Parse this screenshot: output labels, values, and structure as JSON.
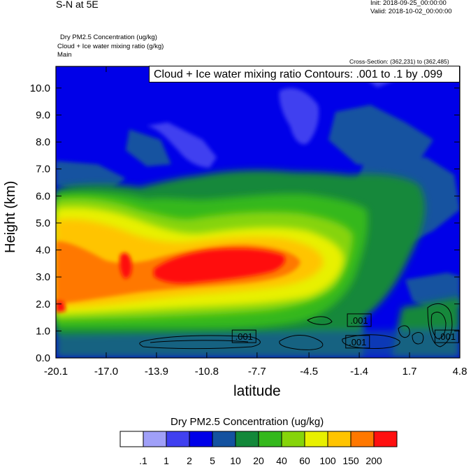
{
  "header": {
    "title": "S-N at 5E",
    "init": "Init: 2018-09-25_00:00:00",
    "valid": "Valid: 2018-10-02_00:00:00",
    "field1": "Dry PM2.5 Concentration   (ug/kg)",
    "field2": "Cloud + Ice water mixing ratio   (g/kg)",
    "field3": "Main",
    "cross_section": "Cross-Section: (362,231) to (362,485)",
    "contour_info": "Cloud + Ice water mixing ratio Contours: .001 to .1 by .099"
  },
  "chart_data": {
    "type": "heatmap",
    "xlabel": "latitude",
    "ylabel": "Height (km)",
    "xlim": [
      -20.1,
      4.8
    ],
    "ylim": [
      0.0,
      10.8
    ],
    "x_ticks": [
      "-20.1",
      "-17.0",
      "-13.9",
      "-10.8",
      "-7.7",
      "-4.5",
      "-1.4",
      "1.7",
      "4.8"
    ],
    "x_tick_values": [
      -20.1,
      -17.0,
      -13.9,
      -10.8,
      -7.7,
      -4.5,
      -1.4,
      1.7,
      4.8
    ],
    "y_ticks": [
      "0.0",
      "1.0",
      "2.0",
      "3.0",
      "4.0",
      "5.0",
      "6.0",
      "7.0",
      "8.0",
      "9.0",
      "10.0"
    ],
    "y_tick_values": [
      0,
      1,
      2,
      3,
      4,
      5,
      6,
      7,
      8,
      9,
      10
    ],
    "colorbar": {
      "title": "Dry PM2.5 Concentration  (ug/kg)",
      "levels": [
        ".1",
        "1",
        "2",
        "5",
        "10",
        "20",
        "40",
        "60",
        "100",
        "150",
        "200"
      ],
      "colors": [
        "#ffffff",
        "#a0a0f8",
        "#4040f0",
        "#0000e8",
        "#1452a0",
        "#13883a",
        "#34b81c",
        "#86d40a",
        "#e8f000",
        "#ffc400",
        "#ff7800",
        "#ff1010"
      ]
    },
    "contour_labels": [
      {
        "text": ".001",
        "lat": -8.5,
        "height": 0.8
      },
      {
        "text": ".001",
        "lat": -1.4,
        "height": 1.4
      },
      {
        "text": ".001",
        "lat": -1.5,
        "height": 0.6
      },
      {
        "text": ".001",
        "lat": 4.0,
        "height": 0.8
      }
    ]
  }
}
